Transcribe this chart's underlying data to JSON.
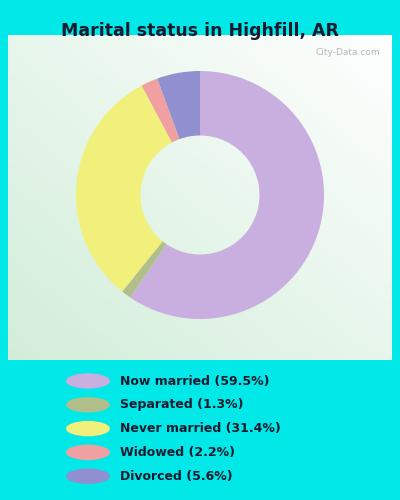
{
  "title": "Marital status in Highfill, AR",
  "slices": [
    59.5,
    1.3,
    31.4,
    2.2,
    5.6
  ],
  "colors": [
    "#c9aee0",
    "#b0bf8a",
    "#f0f07a",
    "#f0a0a0",
    "#9090d0"
  ],
  "labels": [
    "Now married (59.5%)",
    "Separated (1.3%)",
    "Never married (31.4%)",
    "Widowed (2.2%)",
    "Divorced (5.6%)"
  ],
  "legend_colors": [
    "#c9aee0",
    "#b0bf8a",
    "#f0f07a",
    "#f0a0a0",
    "#9090d0"
  ],
  "bg_outer": "#00e8e8",
  "title_color": "#1a1a2e",
  "watermark": "City-Data.com",
  "donut_width": 0.52
}
